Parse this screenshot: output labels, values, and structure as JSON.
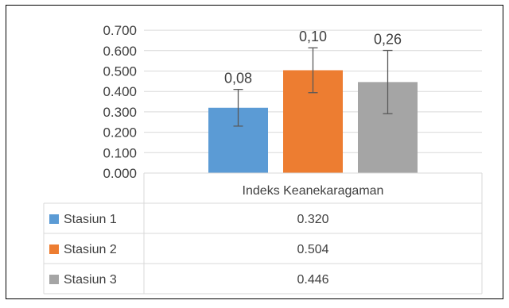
{
  "chart_data": {
    "type": "bar",
    "categories": [
      "Indeks Keanekaragaman"
    ],
    "series": [
      {
        "name": "Stasiun 1",
        "values": [
          0.32
        ],
        "value_text": "0.320",
        "error_plus": 0.09,
        "error_minus": 0.09,
        "data_label": "0,08",
        "color": "#5b9bd5"
      },
      {
        "name": "Stasiun 2",
        "values": [
          0.504
        ],
        "value_text": "0.504",
        "error_plus": 0.11,
        "error_minus": 0.11,
        "data_label": "0,10",
        "color": "#ed7d31"
      },
      {
        "name": "Stasiun 3",
        "values": [
          0.446
        ],
        "value_text": "0.446",
        "error_plus": 0.155,
        "error_minus": 0.155,
        "data_label": "0,26",
        "color": "#a5a5a5"
      }
    ],
    "y_ticks": [
      "0.000",
      "0.100",
      "0.200",
      "0.300",
      "0.400",
      "0.500",
      "0.600",
      "0.700"
    ],
    "ylim": [
      0,
      0.7
    ],
    "grid": true,
    "legend": "data-table"
  },
  "colors": {
    "grid": "#d9d9d9",
    "text": "#404040",
    "error_bar": "#595959",
    "border": "#000000"
  }
}
